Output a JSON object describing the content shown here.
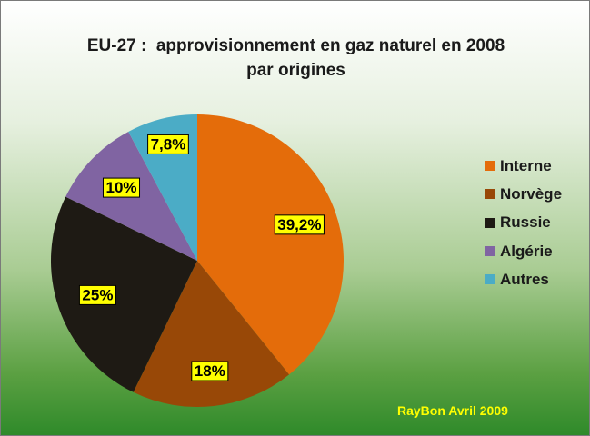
{
  "chart_data": {
    "type": "pie",
    "title": "EU-27 :  approvisionnement en gaz naturel en 2008",
    "subtitle": "par origines",
    "slices": [
      {
        "name": "Interne",
        "value": 39.2,
        "label": "39,2%",
        "color": "#e46c0a"
      },
      {
        "name": "Norvège",
        "value": 18,
        "label": "18%",
        "color": "#984807"
      },
      {
        "name": "Russie",
        "value": 25,
        "label": "25%",
        "color": "#1e1a14"
      },
      {
        "name": "Algérie",
        "value": 10,
        "label": "10%",
        "color": "#8064a2"
      },
      {
        "name": "Autres",
        "value": 7.8,
        "label": "7,8%",
        "color": "#4bacc6"
      }
    ],
    "legend": "right",
    "label_background": "#ffff00"
  },
  "credit": "RayBon Avril 2009"
}
